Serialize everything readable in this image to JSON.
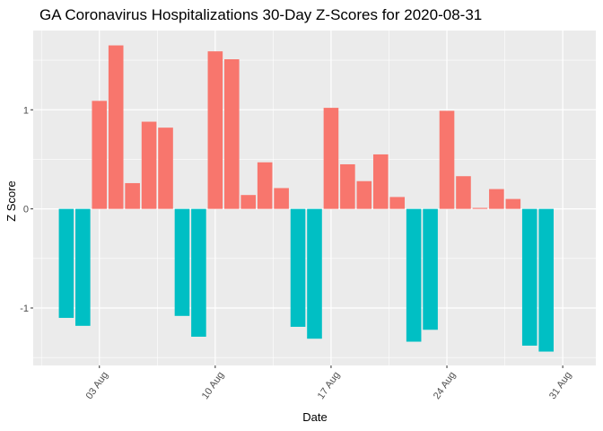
{
  "chart_data": {
    "type": "bar",
    "title": "GA Coronavirus Hospitalizations 30-Day Z-Scores for 2020-08-31",
    "xlabel": "Date",
    "ylabel": "Z Score",
    "x_ticks": [
      {
        "label": "03 Aug",
        "value": "2020-08-03"
      },
      {
        "label": "10 Aug",
        "value": "2020-08-10"
      },
      {
        "label": "17 Aug",
        "value": "2020-08-17"
      },
      {
        "label": "24 Aug",
        "value": "2020-08-24"
      },
      {
        "label": "31 Aug",
        "value": "2020-08-31"
      }
    ],
    "y_ticks": [
      {
        "label": "-1",
        "value": -1
      },
      {
        "label": "0",
        "value": 0
      },
      {
        "label": "1",
        "value": 1
      }
    ],
    "ylim": [
      -1.58,
      1.8
    ],
    "xlim": [
      "2020-07-30",
      "2020-09-02"
    ],
    "grid": true,
    "legend": "none",
    "colors": {
      "positive": "#F8766D",
      "negative": "#00BFC4",
      "panel": "#EBEBEB",
      "grid": "#FFFFFF"
    },
    "bars": [
      {
        "date": "2020-08-01",
        "value": -1.1
      },
      {
        "date": "2020-08-02",
        "value": -1.18
      },
      {
        "date": "2020-08-03",
        "value": 1.09
      },
      {
        "date": "2020-08-04",
        "value": 1.65
      },
      {
        "date": "2020-08-05",
        "value": 0.26
      },
      {
        "date": "2020-08-06",
        "value": 0.88
      },
      {
        "date": "2020-08-07",
        "value": 0.82
      },
      {
        "date": "2020-08-08",
        "value": -1.08
      },
      {
        "date": "2020-08-09",
        "value": -1.29
      },
      {
        "date": "2020-08-10",
        "value": 1.59
      },
      {
        "date": "2020-08-11",
        "value": 1.51
      },
      {
        "date": "2020-08-12",
        "value": 0.14
      },
      {
        "date": "2020-08-13",
        "value": 0.47
      },
      {
        "date": "2020-08-14",
        "value": 0.21
      },
      {
        "date": "2020-08-15",
        "value": -1.19
      },
      {
        "date": "2020-08-16",
        "value": -1.31
      },
      {
        "date": "2020-08-17",
        "value": 1.02
      },
      {
        "date": "2020-08-18",
        "value": 0.45
      },
      {
        "date": "2020-08-19",
        "value": 0.28
      },
      {
        "date": "2020-08-20",
        "value": 0.55
      },
      {
        "date": "2020-08-21",
        "value": 0.12
      },
      {
        "date": "2020-08-22",
        "value": -1.34
      },
      {
        "date": "2020-08-23",
        "value": -1.22
      },
      {
        "date": "2020-08-24",
        "value": 0.99
      },
      {
        "date": "2020-08-25",
        "value": 0.33
      },
      {
        "date": "2020-08-26",
        "value": 0.01
      },
      {
        "date": "2020-08-27",
        "value": 0.2
      },
      {
        "date": "2020-08-28",
        "value": 0.1
      },
      {
        "date": "2020-08-29",
        "value": -1.38
      },
      {
        "date": "2020-08-30",
        "value": -1.44
      }
    ]
  }
}
